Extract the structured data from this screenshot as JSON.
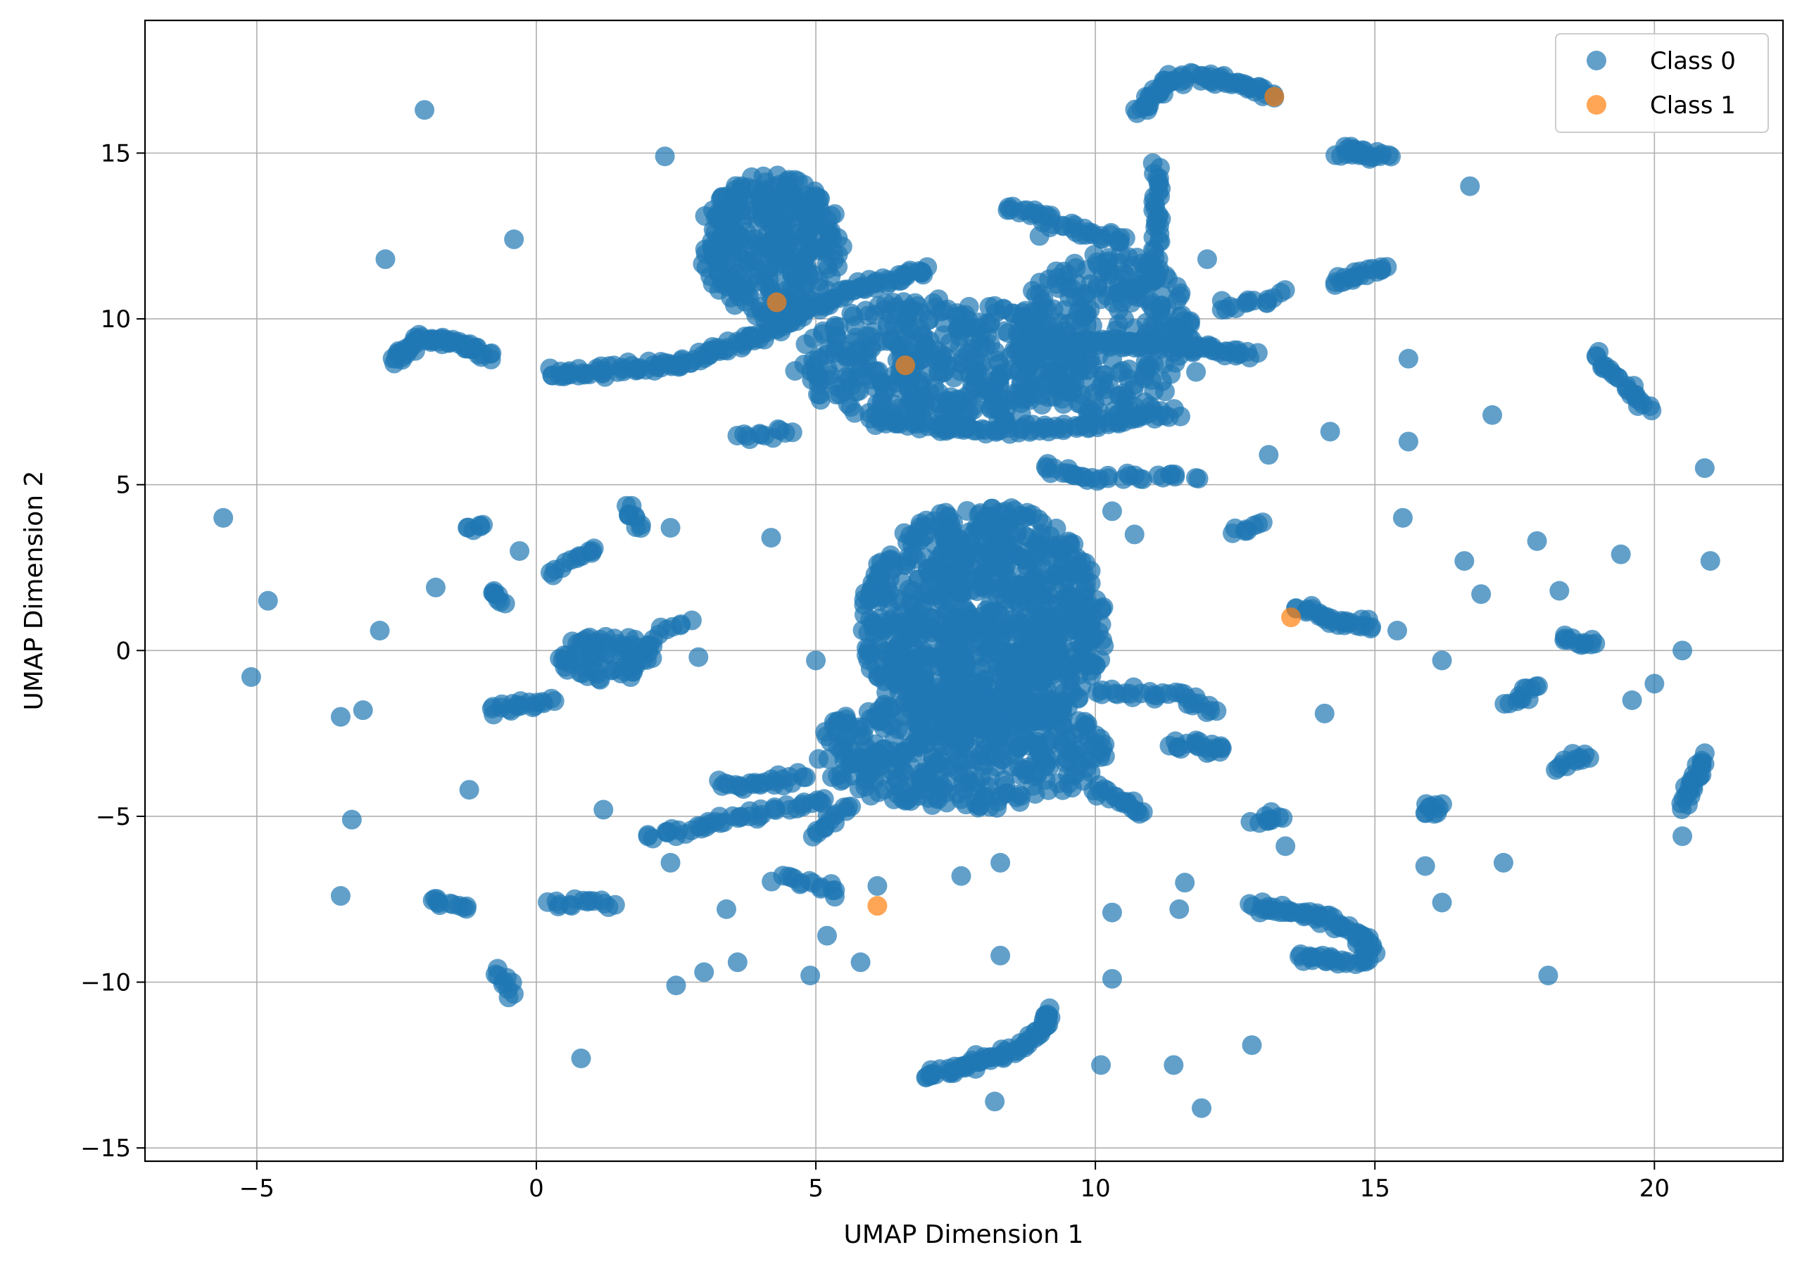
{
  "chart_data": {
    "type": "scatter",
    "title": "",
    "xlabel": "UMAP Dimension 1",
    "ylabel": "UMAP Dimension 2",
    "xlim": [
      -7,
      22.3
    ],
    "ylim": [
      -15.4,
      19.0
    ],
    "xticks": [
      -5,
      0,
      5,
      10,
      15,
      20
    ],
    "xtick_labels": [
      "−5",
      "0",
      "5",
      "10",
      "15",
      "20"
    ],
    "yticks": [
      -15,
      -10,
      -5,
      0,
      5,
      10,
      15
    ],
    "ytick_labels": [
      "−15",
      "−10",
      "−5",
      "0",
      "5",
      "10",
      "15"
    ],
    "grid": true,
    "legend_position": "top-right",
    "series": [
      {
        "name": "Class 0",
        "color": "#1f77b4",
        "alpha": 0.7,
        "clusters": [
          {
            "shape": "blob",
            "cx": 8.0,
            "cy": 0.8,
            "rx": 2.2,
            "ry": 3.6,
            "n": 900
          },
          {
            "shape": "blob",
            "cx": 7.6,
            "cy": -3.0,
            "rx": 2.6,
            "ry": 1.8,
            "n": 420
          },
          {
            "shape": "blob",
            "cx": 4.2,
            "cy": 12.2,
            "rx": 1.3,
            "ry": 2.2,
            "n": 320
          },
          {
            "shape": "blob",
            "cx": 7.2,
            "cy": 8.6,
            "rx": 2.6,
            "ry": 2.0,
            "n": 420
          },
          {
            "shape": "blob",
            "cx": 10.2,
            "cy": 9.5,
            "rx": 1.6,
            "ry": 2.5,
            "n": 260
          },
          {
            "shape": "blob",
            "cx": 1.3,
            "cy": -0.2,
            "rx": 0.9,
            "ry": 0.7,
            "n": 80
          },
          {
            "shape": "line",
            "pts": [
              [
                0.2,
                8.3
              ],
              [
                2.5,
                8.6
              ],
              [
                4.0,
                9.5
              ],
              [
                5.5,
                10.8
              ],
              [
                7.0,
                11.5
              ]
            ],
            "n": 160
          },
          {
            "shape": "line",
            "pts": [
              [
                8.5,
                9.0
              ],
              [
                10.0,
                9.3
              ],
              [
                11.5,
                9.2
              ],
              [
                12.8,
                8.9
              ]
            ],
            "n": 90
          },
          {
            "shape": "line",
            "pts": [
              [
                6.0,
                7.0
              ],
              [
                8.0,
                6.6
              ],
              [
                10.0,
                6.8
              ],
              [
                11.5,
                7.2
              ]
            ],
            "n": 90
          },
          {
            "shape": "line",
            "pts": [
              [
                -2.6,
                8.8
              ],
              [
                -2.0,
                9.4
              ],
              [
                -1.3,
                9.2
              ],
              [
                -0.8,
                8.9
              ]
            ],
            "n": 60
          },
          {
            "shape": "line",
            "pts": [
              [
                10.8,
                16.2
              ],
              [
                11.3,
                17.2
              ],
              [
                12.2,
                17.3
              ],
              [
                13.2,
                16.7
              ]
            ],
            "n": 70
          },
          {
            "shape": "line",
            "pts": [
              [
                11.1,
                14.6
              ],
              [
                11.1,
                11.5
              ],
              [
                10.6,
                10.5
              ]
            ],
            "n": 45
          },
          {
            "shape": "line",
            "pts": [
              [
                8.4,
                13.4
              ],
              [
                9.5,
                12.8
              ],
              [
                10.6,
                12.3
              ]
            ],
            "n": 40
          },
          {
            "shape": "line",
            "pts": [
              [
                14.3,
                15.1
              ],
              [
                15.2,
                14.9
              ]
            ],
            "n": 25
          },
          {
            "shape": "line",
            "pts": [
              [
                14.3,
                11.1
              ],
              [
                15.2,
                11.6
              ]
            ],
            "n": 20
          },
          {
            "shape": "line",
            "pts": [
              [
                12.2,
                10.3
              ],
              [
                13.4,
                10.8
              ]
            ],
            "n": 15
          },
          {
            "shape": "line",
            "pts": [
              [
                18.9,
                8.9
              ],
              [
                19.6,
                7.8
              ],
              [
                19.9,
                7.2
              ]
            ],
            "n": 25
          },
          {
            "shape": "line",
            "pts": [
              [
                6.9,
                -12.9
              ],
              [
                8.3,
                -12.2
              ],
              [
                9.0,
                -11.6
              ],
              [
                9.2,
                -10.8
              ]
            ],
            "n": 70
          },
          {
            "shape": "line",
            "pts": [
              [
                12.8,
                -7.7
              ],
              [
                14.0,
                -8.0
              ],
              [
                14.8,
                -8.6
              ],
              [
                14.9,
                -9.2
              ]
            ],
            "n": 60
          },
          {
            "shape": "line",
            "pts": [
              [
                13.6,
                -9.3
              ],
              [
                14.9,
                -9.4
              ]
            ],
            "n": 25
          },
          {
            "shape": "line",
            "pts": [
              [
                3.3,
                -4.1
              ],
              [
                4.8,
                -3.8
              ]
            ],
            "n": 25
          },
          {
            "shape": "line",
            "pts": [
              [
                3.4,
                -5.1
              ],
              [
                5.2,
                -4.5
              ]
            ],
            "n": 25
          },
          {
            "shape": "line",
            "pts": [
              [
                2.0,
                -5.6
              ],
              [
                3.4,
                -5.1
              ]
            ],
            "n": 20
          },
          {
            "shape": "line",
            "pts": [
              [
                10.0,
                -1.2
              ],
              [
                11.5,
                -1.3
              ],
              [
                12.2,
                -1.9
              ]
            ],
            "n": 30
          },
          {
            "shape": "line",
            "pts": [
              [
                11.4,
                -2.8
              ],
              [
                12.4,
                -3.0
              ]
            ],
            "n": 20
          },
          {
            "shape": "line",
            "pts": [
              [
                10.0,
                -4.2
              ],
              [
                10.9,
                -4.9
              ]
            ],
            "n": 20
          },
          {
            "shape": "line",
            "pts": [
              [
                12.9,
                -5.2
              ],
              [
                13.4,
                -4.9
              ]
            ],
            "n": 10
          },
          {
            "shape": "line",
            "pts": [
              [
                20.5,
                -4.7
              ],
              [
                20.9,
                -3.1
              ]
            ],
            "n": 25
          },
          {
            "shape": "line",
            "pts": [
              [
                18.3,
                -3.6
              ],
              [
                18.8,
                -3.1
              ]
            ],
            "n": 12
          },
          {
            "shape": "line",
            "pts": [
              [
                17.4,
                -1.6
              ],
              [
                17.9,
                -1.1
              ]
            ],
            "n": 12
          },
          {
            "shape": "line",
            "pts": [
              [
                18.3,
                0.4
              ],
              [
                19.0,
                0.2
              ]
            ],
            "n": 12
          },
          {
            "shape": "line",
            "pts": [
              [
                15.9,
                -4.9
              ],
              [
                16.2,
                -4.6
              ]
            ],
            "n": 10
          },
          {
            "shape": "line",
            "pts": [
              [
                13.6,
                1.3
              ],
              [
                14.5,
                0.8
              ],
              [
                15.0,
                0.7
              ]
            ],
            "n": 30
          },
          {
            "shape": "line",
            "pts": [
              [
                -1.9,
                -7.4
              ],
              [
                -1.2,
                -7.8
              ]
            ],
            "n": 12
          },
          {
            "shape": "line",
            "pts": [
              [
                -0.7,
                -9.6
              ],
              [
                -0.4,
                -10.4
              ]
            ],
            "n": 10
          },
          {
            "shape": "line",
            "pts": [
              [
                -0.8,
                -1.8
              ],
              [
                0.3,
                -1.5
              ]
            ],
            "n": 20
          },
          {
            "shape": "line",
            "pts": [
              [
                0.2,
                -7.6
              ],
              [
                1.5,
                -7.6
              ]
            ],
            "n": 15
          },
          {
            "shape": "line",
            "pts": [
              [
                4.3,
                -6.8
              ],
              [
                5.5,
                -7.3
              ]
            ],
            "n": 15
          },
          {
            "shape": "line",
            "pts": [
              [
                5.0,
                -5.6
              ],
              [
                5.6,
                -4.6
              ]
            ],
            "n": 15
          },
          {
            "shape": "line",
            "pts": [
              [
                0.2,
                2.3
              ],
              [
                1.1,
                3.2
              ]
            ],
            "n": 12
          },
          {
            "shape": "line",
            "pts": [
              [
                1.6,
                4.4
              ],
              [
                1.9,
                3.7
              ]
            ],
            "n": 10
          },
          {
            "shape": "line",
            "pts": [
              [
                -1.2,
                3.7
              ],
              [
                -1.0,
                3.9
              ]
            ],
            "n": 6
          },
          {
            "shape": "line",
            "pts": [
              [
                -0.8,
                1.8
              ],
              [
                -0.6,
                1.5
              ]
            ],
            "n": 8
          },
          {
            "shape": "line",
            "pts": [
              [
                9.0,
                5.5
              ],
              [
                10.0,
                5.2
              ]
            ],
            "n": 15
          },
          {
            "shape": "line",
            "pts": [
              [
                10.0,
                5.3
              ],
              [
                11.8,
                5.2
              ]
            ],
            "n": 18
          },
          {
            "shape": "line",
            "pts": [
              [
                12.5,
                3.6
              ],
              [
                13.0,
                3.8
              ]
            ],
            "n": 8
          },
          {
            "shape": "line",
            "pts": [
              [
                3.6,
                6.5
              ],
              [
                4.6,
                6.6
              ]
            ],
            "n": 12
          },
          {
            "shape": "line",
            "pts": [
              [
                2.1,
                0.4
              ],
              [
                2.8,
                1.0
              ]
            ],
            "n": 8
          }
        ],
        "points": [
          [
            -5.6,
            4.0
          ],
          [
            -4.8,
            1.5
          ],
          [
            -5.1,
            -0.8
          ],
          [
            -2.0,
            16.3
          ],
          [
            2.3,
            14.9
          ],
          [
            -2.7,
            11.8
          ],
          [
            -0.4,
            12.4
          ],
          [
            -3.5,
            -2.0
          ],
          [
            -3.1,
            -1.8
          ],
          [
            -3.3,
            -5.1
          ],
          [
            -3.5,
            -7.4
          ],
          [
            -1.2,
            -4.2
          ],
          [
            -2.8,
            0.6
          ],
          [
            -1.8,
            1.9
          ],
          [
            0.8,
            -12.3
          ],
          [
            1.2,
            -4.8
          ],
          [
            2.4,
            -6.4
          ],
          [
            2.5,
            -10.1
          ],
          [
            3.0,
            -9.7
          ],
          [
            3.4,
            -7.8
          ],
          [
            3.6,
            -9.4
          ],
          [
            4.9,
            -9.8
          ],
          [
            5.2,
            -8.6
          ],
          [
            5.8,
            -9.4
          ],
          [
            7.6,
            -6.8
          ],
          [
            8.2,
            -13.6
          ],
          [
            8.3,
            -6.4
          ],
          [
            8.3,
            -9.2
          ],
          [
            10.1,
            -12.5
          ],
          [
            10.3,
            -7.9
          ],
          [
            10.3,
            -9.9
          ],
          [
            11.4,
            -12.5
          ],
          [
            11.5,
            -7.8
          ],
          [
            11.6,
            -7.0
          ],
          [
            11.9,
            -13.8
          ],
          [
            12.8,
            -11.9
          ],
          [
            13.4,
            -5.9
          ],
          [
            15.9,
            -6.5
          ],
          [
            16.2,
            -7.6
          ],
          [
            17.3,
            -6.4
          ],
          [
            18.1,
            -9.8
          ],
          [
            19.6,
            -1.5
          ],
          [
            20.0,
            -1.0
          ],
          [
            20.5,
            -5.6
          ],
          [
            20.5,
            0.0
          ],
          [
            21.0,
            2.7
          ],
          [
            20.9,
            5.5
          ],
          [
            19.4,
            2.9
          ],
          [
            18.3,
            1.8
          ],
          [
            17.9,
            3.3
          ],
          [
            16.9,
            1.7
          ],
          [
            16.6,
            2.7
          ],
          [
            16.7,
            14.0
          ],
          [
            17.1,
            7.1
          ],
          [
            15.6,
            8.8
          ],
          [
            15.6,
            6.3
          ],
          [
            15.5,
            4.0
          ],
          [
            14.2,
            6.6
          ],
          [
            14.1,
            -1.9
          ],
          [
            16.2,
            -0.3
          ],
          [
            15.4,
            0.6
          ],
          [
            13.1,
            5.9
          ],
          [
            10.7,
            3.5
          ],
          [
            10.3,
            4.2
          ],
          [
            4.2,
            3.4
          ],
          [
            2.4,
            3.7
          ],
          [
            1.0,
            3.0
          ],
          [
            -0.3,
            3.0
          ],
          [
            9.0,
            12.5
          ],
          [
            12.0,
            11.8
          ],
          [
            11.8,
            8.4
          ],
          [
            6.1,
            -7.1
          ],
          [
            5.0,
            -0.3
          ],
          [
            2.9,
            -0.2
          ]
        ]
      },
      {
        "name": "Class 1",
        "color": "#ff7f0e",
        "alpha": 0.7,
        "points": [
          [
            4.3,
            10.5
          ],
          [
            6.6,
            8.6
          ],
          [
            13.2,
            16.7
          ],
          [
            13.5,
            1.0
          ],
          [
            6.1,
            -7.7
          ]
        ]
      }
    ]
  }
}
